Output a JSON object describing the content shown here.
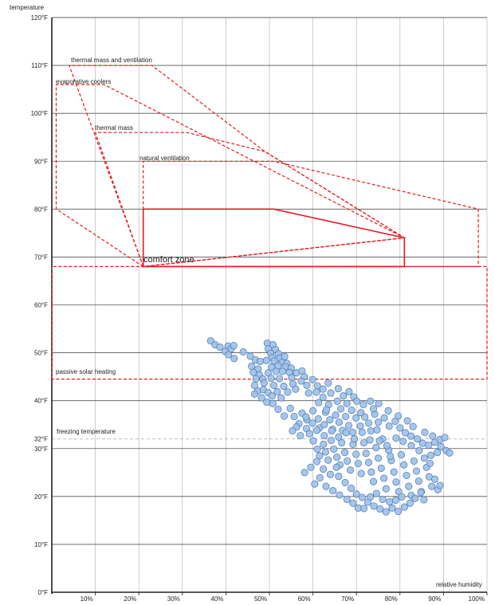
{
  "chart_data": {
    "type": "scatter",
    "ylabel": "temperature",
    "xlabel": "relative humidity",
    "xlim": [
      0,
      100
    ],
    "ylim": [
      0,
      120
    ],
    "x_ticks": [
      {
        "value": 10,
        "label": "10%"
      },
      {
        "value": 20,
        "label": "20%"
      },
      {
        "value": 30,
        "label": "30%"
      },
      {
        "value": 40,
        "label": "40%"
      },
      {
        "value": 50,
        "label": "50%"
      },
      {
        "value": 60,
        "label": "60%"
      },
      {
        "value": 70,
        "label": "70%"
      },
      {
        "value": 80,
        "label": "80%"
      },
      {
        "value": 90,
        "label": "90%"
      },
      {
        "value": 100,
        "label": "100%"
      }
    ],
    "y_ticks": [
      {
        "value": 0,
        "label": "0°F"
      },
      {
        "value": 10,
        "label": "10°F"
      },
      {
        "value": 20,
        "label": "20°F"
      },
      {
        "value": 30,
        "label": "30°F"
      },
      {
        "value": 32,
        "label": "32°F"
      },
      {
        "value": 40,
        "label": "40°F"
      },
      {
        "value": 50,
        "label": "50°F"
      },
      {
        "value": 60,
        "label": "60°F"
      },
      {
        "value": 70,
        "label": "70°F"
      },
      {
        "value": 80,
        "label": "80°F"
      },
      {
        "value": 90,
        "label": "90°F"
      },
      {
        "value": 100,
        "label": "100°F"
      },
      {
        "value": 110,
        "label": "110°F"
      },
      {
        "value": 120,
        "label": "120°F"
      }
    ],
    "grid": true,
    "colors": {
      "zone": "#e8191c",
      "point_fill": "#9dc0e8",
      "point_stroke": "#4a78b0",
      "grid": "#555555",
      "freezing_line": "#aaaaaa"
    },
    "reference_line": {
      "label": "freezing temperature",
      "y": 32
    },
    "zones": [
      {
        "name": "comfort zone",
        "style": "solid",
        "polygon": [
          [
            21,
            68
          ],
          [
            21,
            80
          ],
          [
            51,
            80
          ],
          [
            81,
            74
          ],
          [
            81,
            68
          ]
        ]
      },
      {
        "name": "natural ventilation",
        "style": "dashed",
        "polygon": [
          [
            21,
            68
          ],
          [
            21,
            90
          ],
          [
            51,
            90
          ],
          [
            98,
            80
          ],
          [
            98,
            68
          ]
        ]
      },
      {
        "name": "thermal mass",
        "style": "dashed",
        "polygon": [
          [
            21,
            68
          ],
          [
            10,
            96
          ],
          [
            31,
            96
          ],
          [
            49,
            92
          ],
          [
            81,
            74
          ]
        ]
      },
      {
        "name": "thermal mass and ventilation",
        "style": "dashed",
        "polygon": [
          [
            21,
            68
          ],
          [
            4,
            110
          ],
          [
            23,
            110
          ],
          [
            49,
            92
          ],
          [
            81,
            74
          ]
        ]
      },
      {
        "name": "evaporative coolers",
        "style": "dashed",
        "polygon": [
          [
            21,
            68
          ],
          [
            1,
            80
          ],
          [
            1,
            106
          ],
          [
            12,
            106
          ],
          [
            81,
            74
          ]
        ]
      },
      {
        "name": "passive solar heating",
        "style": "dashed",
        "polygon": [
          [
            0,
            44.5
          ],
          [
            0,
            68
          ],
          [
            100,
            68
          ],
          [
            100,
            44.5
          ]
        ]
      }
    ],
    "series": [
      {
        "values": [
          [
            36.5,
            52.5
          ],
          [
            37.5,
            51.7
          ],
          [
            38.6,
            51.2
          ],
          [
            40.5,
            51.4
          ],
          [
            39.8,
            50.3
          ],
          [
            41.2,
            50.8
          ],
          [
            41.8,
            51.5
          ],
          [
            40.6,
            49.6
          ],
          [
            41.9,
            48.8
          ],
          [
            44.0,
            50.2
          ],
          [
            45.6,
            49.3
          ],
          [
            46.8,
            48.5
          ],
          [
            47.9,
            48.2
          ],
          [
            45.9,
            47.2
          ],
          [
            47.4,
            46.6
          ],
          [
            46.3,
            45.9
          ],
          [
            47.7,
            45.4
          ],
          [
            46.9,
            44.6
          ],
          [
            48.5,
            44.5
          ],
          [
            49.5,
            52.0
          ],
          [
            50.8,
            51.7
          ],
          [
            49.7,
            50.8
          ],
          [
            51.4,
            50.7
          ],
          [
            50.3,
            49.9
          ],
          [
            52.1,
            49.8
          ],
          [
            50.6,
            49.0
          ],
          [
            52.4,
            48.9
          ],
          [
            49.3,
            48.4
          ],
          [
            51.1,
            48.3
          ],
          [
            52.9,
            48.0
          ],
          [
            53.5,
            49.2
          ],
          [
            54.0,
            47.8
          ],
          [
            50.5,
            47.0
          ],
          [
            52.0,
            47.3
          ],
          [
            53.7,
            47.1
          ],
          [
            55.0,
            46.8
          ],
          [
            49.7,
            45.8
          ],
          [
            51.5,
            46.1
          ],
          [
            53.0,
            46.1
          ],
          [
            54.6,
            45.9
          ],
          [
            56.2,
            45.8
          ],
          [
            57.5,
            46.2
          ],
          [
            48.8,
            43.7
          ],
          [
            50.4,
            44.7
          ],
          [
            52.3,
            44.6
          ],
          [
            55.1,
            44.8
          ],
          [
            58.0,
            45.0
          ],
          [
            46.6,
            43.2
          ],
          [
            47.3,
            42.0
          ],
          [
            48.6,
            42.3
          ],
          [
            49.7,
            41.7
          ],
          [
            46.6,
            41.4
          ],
          [
            48.2,
            40.6
          ],
          [
            49.4,
            39.7
          ],
          [
            51.0,
            43.2
          ],
          [
            50.6,
            41.0
          ],
          [
            51.8,
            41.9
          ],
          [
            50.8,
            39.4
          ],
          [
            52.7,
            40.6
          ],
          [
            53.3,
            43.0
          ],
          [
            54.2,
            41.8
          ],
          [
            55.4,
            43.5
          ],
          [
            56.0,
            42.4
          ],
          [
            57.3,
            44.1
          ],
          [
            58.6,
            43.2
          ],
          [
            59.9,
            44.4
          ],
          [
            61.0,
            43.1
          ],
          [
            62.3,
            42.4
          ],
          [
            63.5,
            43.7
          ],
          [
            59.0,
            41.6
          ],
          [
            60.8,
            41.8
          ],
          [
            62.3,
            40.7
          ],
          [
            64.1,
            41.6
          ],
          [
            65.8,
            42.5
          ],
          [
            67.0,
            41.0
          ],
          [
            68.3,
            41.9
          ],
          [
            69.4,
            40.8
          ],
          [
            61.3,
            39.6
          ],
          [
            63.6,
            39.2
          ],
          [
            65.6,
            39.9
          ],
          [
            67.8,
            39.4
          ],
          [
            70.1,
            39.9
          ],
          [
            71.6,
            39.2
          ],
          [
            73.2,
            39.9
          ],
          [
            75.1,
            39.4
          ],
          [
            52.0,
            38.2
          ],
          [
            53.4,
            36.8
          ],
          [
            54.8,
            38.4
          ],
          [
            55.7,
            36.7
          ],
          [
            56.8,
            35.2
          ],
          [
            57.5,
            37.4
          ],
          [
            58.6,
            36.0
          ],
          [
            58.5,
            34.2
          ],
          [
            59.9,
            35.3
          ],
          [
            60.0,
            37.9
          ],
          [
            61.2,
            36.2
          ],
          [
            61.5,
            34.3
          ],
          [
            62.6,
            35.0
          ],
          [
            62.9,
            37.6
          ],
          [
            63.9,
            36.0
          ],
          [
            64.5,
            34.0
          ],
          [
            65.2,
            37.0
          ],
          [
            66.0,
            35.5
          ],
          [
            66.8,
            33.8
          ],
          [
            67.5,
            36.7
          ],
          [
            68.2,
            34.8
          ],
          [
            69.1,
            33.4
          ],
          [
            69.9,
            36.4
          ],
          [
            70.9,
            34.7
          ],
          [
            71.9,
            36.6
          ],
          [
            72.8,
            35.3
          ],
          [
            73.3,
            33.7
          ],
          [
            74.2,
            37.2
          ],
          [
            75.0,
            35.5
          ],
          [
            76.4,
            36.4
          ],
          [
            77.5,
            34.7
          ],
          [
            78.9,
            35.7
          ],
          [
            80.0,
            34.3
          ],
          [
            81.2,
            33.3
          ],
          [
            82.5,
            32.6
          ],
          [
            84.0,
            32.0
          ],
          [
            85.2,
            31.1
          ],
          [
            86.6,
            30.7
          ],
          [
            88.0,
            31.3
          ],
          [
            89.4,
            30.4
          ],
          [
            90.6,
            29.6
          ],
          [
            91.4,
            29.1
          ],
          [
            89.2,
            31.9
          ],
          [
            59.2,
            33.1
          ],
          [
            60.1,
            31.6
          ],
          [
            61.0,
            29.9
          ],
          [
            61.5,
            28.5
          ],
          [
            62.4,
            30.9
          ],
          [
            62.9,
            29.3
          ],
          [
            63.5,
            27.6
          ],
          [
            64.2,
            31.7
          ],
          [
            64.8,
            29.9
          ],
          [
            65.5,
            28.2
          ],
          [
            66.2,
            26.6
          ],
          [
            66.6,
            31.2
          ],
          [
            67.3,
            29.2
          ],
          [
            67.9,
            27.4
          ],
          [
            68.6,
            25.5
          ],
          [
            69.2,
            30.9
          ],
          [
            69.9,
            28.8
          ],
          [
            70.4,
            26.9
          ],
          [
            71.1,
            24.8
          ],
          [
            71.7,
            31.2
          ],
          [
            72.2,
            29.0
          ],
          [
            72.8,
            27.1
          ],
          [
            73.4,
            25.1
          ],
          [
            73.9,
            23.1
          ],
          [
            74.5,
            30.2
          ],
          [
            75.0,
            28.0
          ],
          [
            75.7,
            25.9
          ],
          [
            76.3,
            23.8
          ],
          [
            76.8,
            21.6
          ],
          [
            77.4,
            29.7
          ],
          [
            78.0,
            27.5
          ],
          [
            78.6,
            25.1
          ],
          [
            79.1,
            23.0
          ],
          [
            79.7,
            21.0
          ],
          [
            80.3,
            28.7
          ],
          [
            80.9,
            26.6
          ],
          [
            81.5,
            24.4
          ],
          [
            82.0,
            22.1
          ],
          [
            82.6,
            20.2
          ],
          [
            83.2,
            27.4
          ],
          [
            83.8,
            25.3
          ],
          [
            84.3,
            23.2
          ],
          [
            84.9,
            21.0
          ],
          [
            85.5,
            19.3
          ],
          [
            86.1,
            26.1
          ],
          [
            86.7,
            24.1
          ],
          [
            87.3,
            22.1
          ],
          [
            88.0,
            23.6
          ],
          [
            88.7,
            21.4
          ],
          [
            89.2,
            22.3
          ],
          [
            65.9,
            24.2
          ],
          [
            67.4,
            22.9
          ],
          [
            68.8,
            21.7
          ],
          [
            70.0,
            20.5
          ],
          [
            71.3,
            19.8
          ],
          [
            72.6,
            18.8
          ],
          [
            74.0,
            18.0
          ],
          [
            75.4,
            17.4
          ],
          [
            76.8,
            16.8
          ],
          [
            78.2,
            17.6
          ],
          [
            79.6,
            16.9
          ],
          [
            81.0,
            17.8
          ],
          [
            82.3,
            18.6
          ],
          [
            83.5,
            19.6
          ],
          [
            84.8,
            20.8
          ],
          [
            70.4,
            17.6
          ],
          [
            71.7,
            17.5
          ],
          [
            73.2,
            19.9
          ],
          [
            74.6,
            20.6
          ],
          [
            76.0,
            19.4
          ],
          [
            77.6,
            18.9
          ],
          [
            79.0,
            19.2
          ],
          [
            80.4,
            19.9
          ],
          [
            58.1,
            25.0
          ],
          [
            59.5,
            26.1
          ],
          [
            60.9,
            27.3
          ],
          [
            62.4,
            25.7
          ],
          [
            64.0,
            24.6
          ],
          [
            65.4,
            26.1
          ],
          [
            77.8,
            28.4
          ],
          [
            76.0,
            32.0
          ],
          [
            74.7,
            33.9
          ],
          [
            73.1,
            31.8
          ],
          [
            71.3,
            33.4
          ],
          [
            69.5,
            32.0
          ],
          [
            67.6,
            33.3
          ],
          [
            65.9,
            32.4
          ],
          [
            64.3,
            33.7
          ],
          [
            62.6,
            32.7
          ],
          [
            60.9,
            33.8
          ],
          [
            58.4,
            36.6
          ],
          [
            56.2,
            34.5
          ],
          [
            57.1,
            32.7
          ],
          [
            55.3,
            33.7
          ],
          [
            63.1,
            38.1
          ],
          [
            66.4,
            38.3
          ],
          [
            68.9,
            38.0
          ],
          [
            71.0,
            37.5
          ],
          [
            73.9,
            38.3
          ],
          [
            77.3,
            37.9
          ],
          [
            79.6,
            36.8
          ],
          [
            81.7,
            35.8
          ],
          [
            83.0,
            34.6
          ],
          [
            85.7,
            33.4
          ],
          [
            87.5,
            32.6
          ],
          [
            90.3,
            32.3
          ],
          [
            60.4,
            22.6
          ],
          [
            61.6,
            23.9
          ],
          [
            63.0,
            22.1
          ],
          [
            64.6,
            21.2
          ],
          [
            66.1,
            20.3
          ],
          [
            67.8,
            19.4
          ],
          [
            69.2,
            18.6
          ],
          [
            85.6,
            28.0
          ],
          [
            87.1,
            28.6
          ],
          [
            88.6,
            29.2
          ],
          [
            86.9,
            26.9
          ],
          [
            84.4,
            29.6
          ],
          [
            82.6,
            30.6
          ],
          [
            80.7,
            31.5
          ],
          [
            79.1,
            32.2
          ],
          [
            77.0,
            30.6
          ],
          [
            75.3,
            31.6
          ]
        ]
      }
    ]
  }
}
